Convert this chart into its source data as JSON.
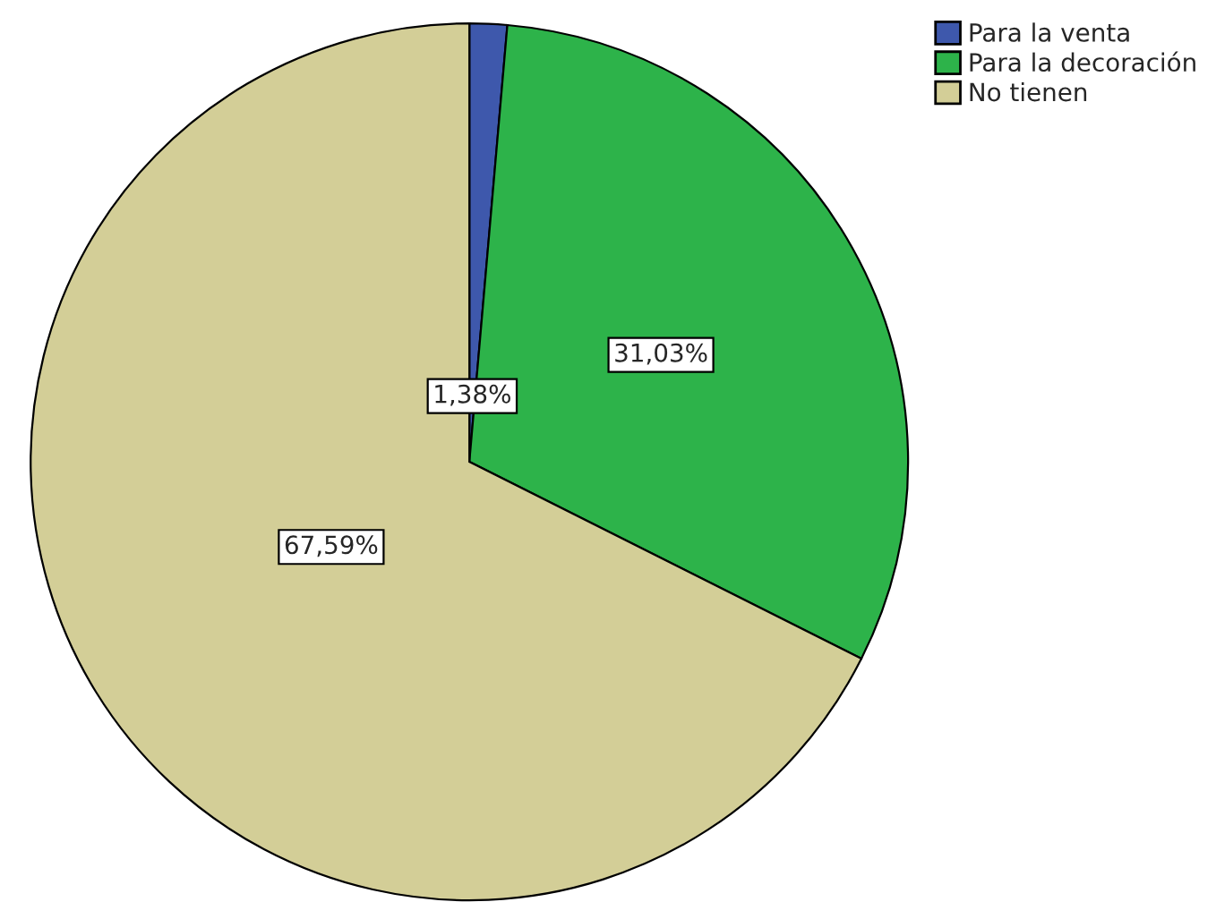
{
  "chart_data": {
    "type": "pie",
    "categories": [
      "Para la venta",
      "Para la decoración",
      "No tienen"
    ],
    "values": [
      1.38,
      31.03,
      67.59
    ],
    "colors": [
      "#3e58ac",
      "#2db34a",
      "#d3ce97"
    ],
    "value_labels": [
      "1,38%",
      "31,03%",
      "67,59%"
    ],
    "legend": "top right"
  }
}
